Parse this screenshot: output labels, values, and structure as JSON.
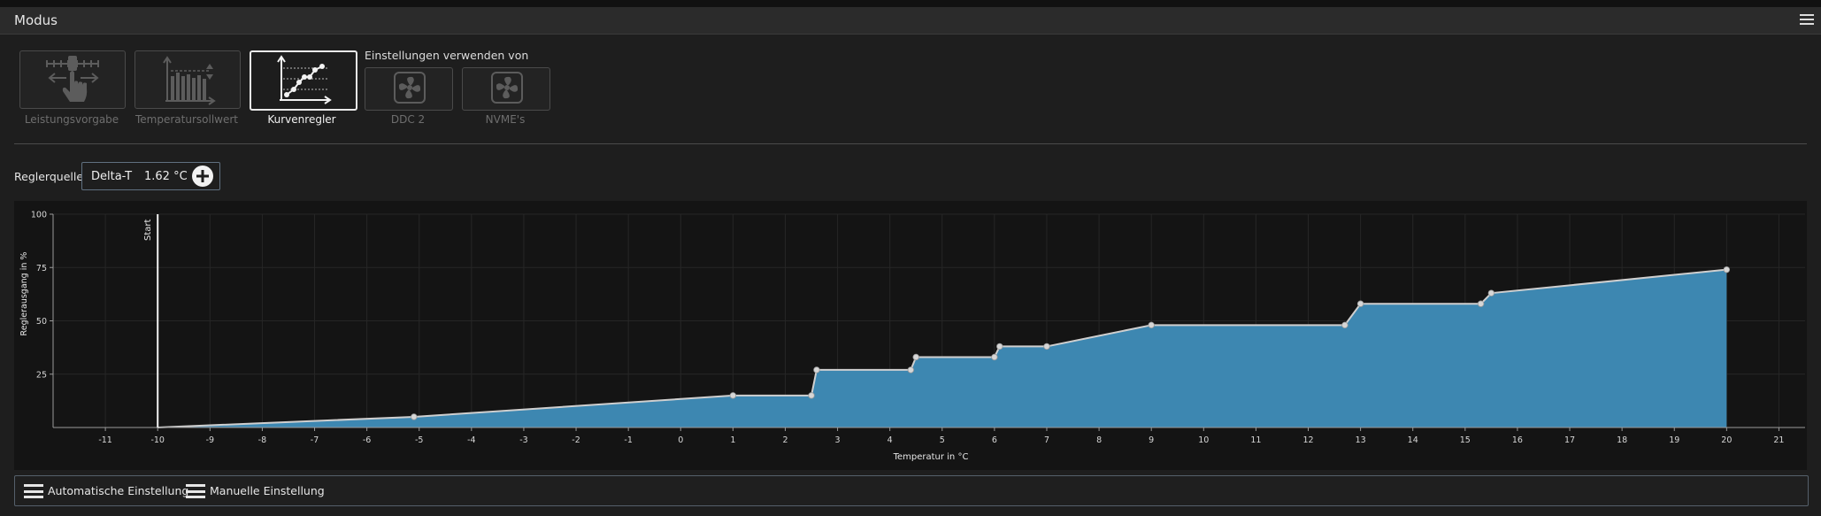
{
  "window": {
    "title": "Modus"
  },
  "modes": [
    {
      "label": "Leistungsvorgabe",
      "active": false,
      "icon": "slider-hand-icon"
    },
    {
      "label": "Temperatursollwert",
      "active": false,
      "icon": "temperature-bars-icon"
    },
    {
      "label": "Kurvenregler",
      "active": true,
      "icon": "curve-chart-icon"
    }
  ],
  "settings_from": {
    "heading": "Einstellungen verwenden von",
    "sources": [
      {
        "label": "DDC 2",
        "icon": "fan-icon"
      },
      {
        "label": "NVME's",
        "icon": "fan-icon"
      }
    ]
  },
  "controller_source": {
    "label": "Reglerquelle",
    "name": "Delta-T",
    "value": "1.62 °C"
  },
  "chart_data": {
    "type": "area",
    "xlabel": "Temperatur in °C",
    "ylabel": "Reglerausgang in %",
    "xlim": [
      -12,
      21.5
    ],
    "ylim": [
      0,
      100
    ],
    "x_ticks": [
      -11,
      -10,
      -9,
      -8,
      -7,
      -6,
      -5,
      -4,
      -3,
      -2,
      -1,
      0,
      1,
      2,
      3,
      4,
      5,
      6,
      7,
      8,
      9,
      10,
      11,
      12,
      13,
      14,
      15,
      16,
      17,
      18,
      19,
      20,
      21
    ],
    "y_ticks": [
      25,
      50,
      75,
      100
    ],
    "start_marker": {
      "x": -10,
      "label": "Start"
    },
    "fill_color": "#3d87b1",
    "line_color": "#cfcfcf",
    "points": [
      {
        "x": -10,
        "y": 0
      },
      {
        "x": -5.1,
        "y": 5
      },
      {
        "x": 1,
        "y": 15
      },
      {
        "x": 2.5,
        "y": 15
      },
      {
        "x": 2.6,
        "y": 27
      },
      {
        "x": 4.4,
        "y": 27
      },
      {
        "x": 4.5,
        "y": 33
      },
      {
        "x": 6,
        "y": 33
      },
      {
        "x": 6.1,
        "y": 38
      },
      {
        "x": 7,
        "y": 38
      },
      {
        "x": 9,
        "y": 48
      },
      {
        "x": 12.7,
        "y": 48
      },
      {
        "x": 13,
        "y": 58
      },
      {
        "x": 15.3,
        "y": 58
      },
      {
        "x": 15.5,
        "y": 63
      },
      {
        "x": 20,
        "y": 74
      }
    ]
  },
  "bottom_bar": {
    "auto_label": "Automatische Einstellung",
    "manual_label": "Manuelle Einstellung"
  }
}
